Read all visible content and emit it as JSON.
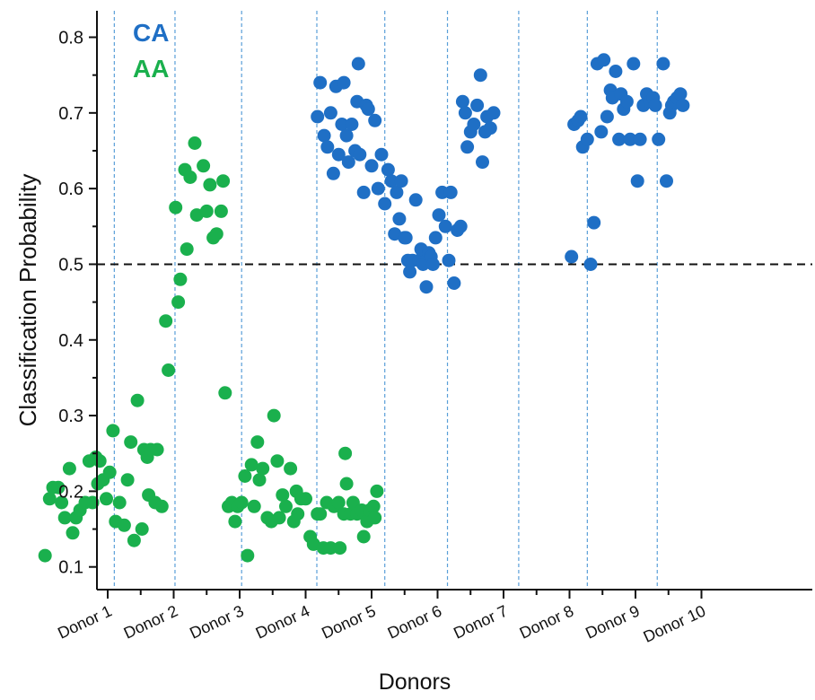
{
  "chart_data": {
    "type": "scatter",
    "title": "",
    "xlabel": "Donors",
    "ylabel": "Classification Probability",
    "ylim": [
      0.07,
      0.835
    ],
    "y_ticks": [
      "0.1",
      "0.2",
      "0.3",
      "0.4",
      "0.5",
      "0.6",
      "0.7",
      "0.8"
    ],
    "categories": [
      "Donor 1",
      "Donor 2",
      "Donor 3",
      "Donor 4",
      "Donor 5",
      "Donor 6",
      "Donor 7",
      "Donor 8",
      "Donor 9",
      "Donor 10"
    ],
    "threshold": 0.5,
    "grid": false,
    "legend_position": "top-left",
    "colors": {
      "CA": "#1f6fc5",
      "AA": "#1ab04d",
      "separator": "#5a9fd8",
      "threshold": "#111111"
    },
    "series": [
      {
        "name": "AA",
        "x": [
          0.05,
          0.12,
          0.17,
          0.25,
          0.3,
          0.35,
          0.42,
          0.47,
          0.52,
          0.58,
          0.66,
          0.72,
          0.77,
          0.82,
          0.85,
          0.88,
          0.93,
          0.98,
          1.03,
          1.08,
          1.12,
          1.18,
          1.25,
          1.3,
          1.35,
          1.4,
          1.45,
          1.52,
          1.55,
          1.6,
          1.62,
          1.65,
          1.72,
          1.75,
          1.82,
          1.88,
          1.92,
          2.03,
          2.07,
          2.1,
          2.17,
          2.2,
          2.25,
          2.32,
          2.35,
          2.45,
          2.5,
          2.55,
          2.6,
          2.65,
          2.72,
          2.75,
          2.78,
          2.83,
          2.88,
          2.93,
          2.97,
          3.03,
          3.08,
          3.12,
          3.18,
          3.22,
          3.27,
          3.3,
          3.35,
          3.42,
          3.48,
          3.52,
          3.57,
          3.6,
          3.65,
          3.7,
          3.77,
          3.82,
          3.86,
          3.88,
          3.93,
          4.0,
          4.07,
          4.12,
          4.18,
          4.22,
          4.27,
          4.32,
          4.38,
          4.43,
          4.5,
          4.52,
          4.58,
          4.6,
          4.62,
          4.68,
          4.72,
          4.78,
          4.85,
          4.88,
          4.93,
          4.97,
          5.03,
          5.05,
          5.08
        ],
        "y": [
          0.115,
          0.19,
          0.205,
          0.205,
          0.185,
          0.165,
          0.23,
          0.145,
          0.165,
          0.175,
          0.185,
          0.24,
          0.185,
          0.245,
          0.21,
          0.24,
          0.215,
          0.19,
          0.225,
          0.28,
          0.16,
          0.185,
          0.155,
          0.215,
          0.265,
          0.135,
          0.32,
          0.15,
          0.255,
          0.245,
          0.195,
          0.255,
          0.185,
          0.255,
          0.18,
          0.425,
          0.36,
          0.575,
          0.45,
          0.48,
          0.625,
          0.52,
          0.615,
          0.66,
          0.565,
          0.63,
          0.57,
          0.605,
          0.535,
          0.54,
          0.57,
          0.61,
          0.33,
          0.18,
          0.185,
          0.16,
          0.18,
          0.185,
          0.22,
          0.115,
          0.235,
          0.18,
          0.265,
          0.215,
          0.23,
          0.165,
          0.16,
          0.3,
          0.24,
          0.165,
          0.195,
          0.18,
          0.23,
          0.16,
          0.2,
          0.17,
          0.19,
          0.19,
          0.14,
          0.13,
          0.17,
          0.17,
          0.125,
          0.185,
          0.125,
          0.18,
          0.185,
          0.125,
          0.17,
          0.25,
          0.21,
          0.17,
          0.185,
          0.17,
          0.175,
          0.14,
          0.16,
          0.175,
          0.18,
          0.165,
          0.2
        ]
      },
      {
        "name": "CA",
        "x": [
          4.18,
          4.22,
          4.28,
          4.33,
          4.38,
          4.42,
          4.46,
          4.5,
          4.55,
          4.58,
          4.62,
          4.65,
          4.7,
          4.75,
          4.78,
          4.8,
          4.82,
          4.88,
          4.92,
          4.95,
          5.0,
          5.05,
          5.1,
          5.15,
          5.2,
          5.25,
          5.3,
          5.35,
          5.38,
          5.42,
          5.45,
          5.5,
          5.52,
          5.55,
          5.58,
          5.62,
          5.67,
          5.72,
          5.75,
          5.78,
          5.83,
          5.87,
          5.9,
          5.93,
          5.97,
          6.02,
          6.07,
          6.12,
          6.17,
          6.2,
          6.25,
          6.3,
          6.35,
          6.38,
          6.42,
          6.45,
          6.5,
          6.55,
          6.6,
          6.65,
          6.68,
          6.72,
          6.75,
          6.8,
          6.85,
          8.03,
          8.07,
          8.13,
          8.17,
          8.2,
          8.27,
          8.32,
          8.37,
          8.42,
          8.48,
          8.52,
          8.57,
          8.62,
          8.65,
          8.7,
          8.75,
          8.78,
          8.82,
          8.87,
          8.92,
          8.97,
          9.03,
          9.07,
          9.12,
          9.17,
          9.22,
          9.27,
          9.3,
          9.35,
          9.42,
          9.47,
          9.52,
          9.55,
          9.58,
          9.63,
          9.68,
          9.72
        ],
        "y": [
          0.695,
          0.74,
          0.67,
          0.655,
          0.7,
          0.62,
          0.735,
          0.645,
          0.685,
          0.74,
          0.67,
          0.635,
          0.685,
          0.65,
          0.715,
          0.765,
          0.645,
          0.595,
          0.71,
          0.705,
          0.63,
          0.69,
          0.6,
          0.645,
          0.58,
          0.625,
          0.61,
          0.54,
          0.595,
          0.56,
          0.61,
          0.535,
          0.535,
          0.505,
          0.49,
          0.505,
          0.585,
          0.505,
          0.52,
          0.5,
          0.47,
          0.515,
          0.51,
          0.5,
          0.535,
          0.565,
          0.595,
          0.55,
          0.505,
          0.595,
          0.475,
          0.545,
          0.55,
          0.715,
          0.7,
          0.655,
          0.675,
          0.685,
          0.71,
          0.75,
          0.635,
          0.675,
          0.695,
          0.68,
          0.7,
          0.51,
          0.685,
          0.69,
          0.695,
          0.655,
          0.665,
          0.5,
          0.555,
          0.765,
          0.675,
          0.77,
          0.695,
          0.73,
          0.72,
          0.755,
          0.665,
          0.725,
          0.705,
          0.715,
          0.665,
          0.765,
          0.61,
          0.665,
          0.71,
          0.725,
          0.715,
          0.72,
          0.71,
          0.665,
          0.765,
          0.61,
          0.7,
          0.71,
          0.715,
          0.72,
          0.725,
          0.71
        ]
      }
    ],
    "separators": [
      1.1,
      2.02,
      3.03,
      4.17,
      5.2,
      6.15,
      7.23,
      8.27,
      9.33
    ]
  }
}
